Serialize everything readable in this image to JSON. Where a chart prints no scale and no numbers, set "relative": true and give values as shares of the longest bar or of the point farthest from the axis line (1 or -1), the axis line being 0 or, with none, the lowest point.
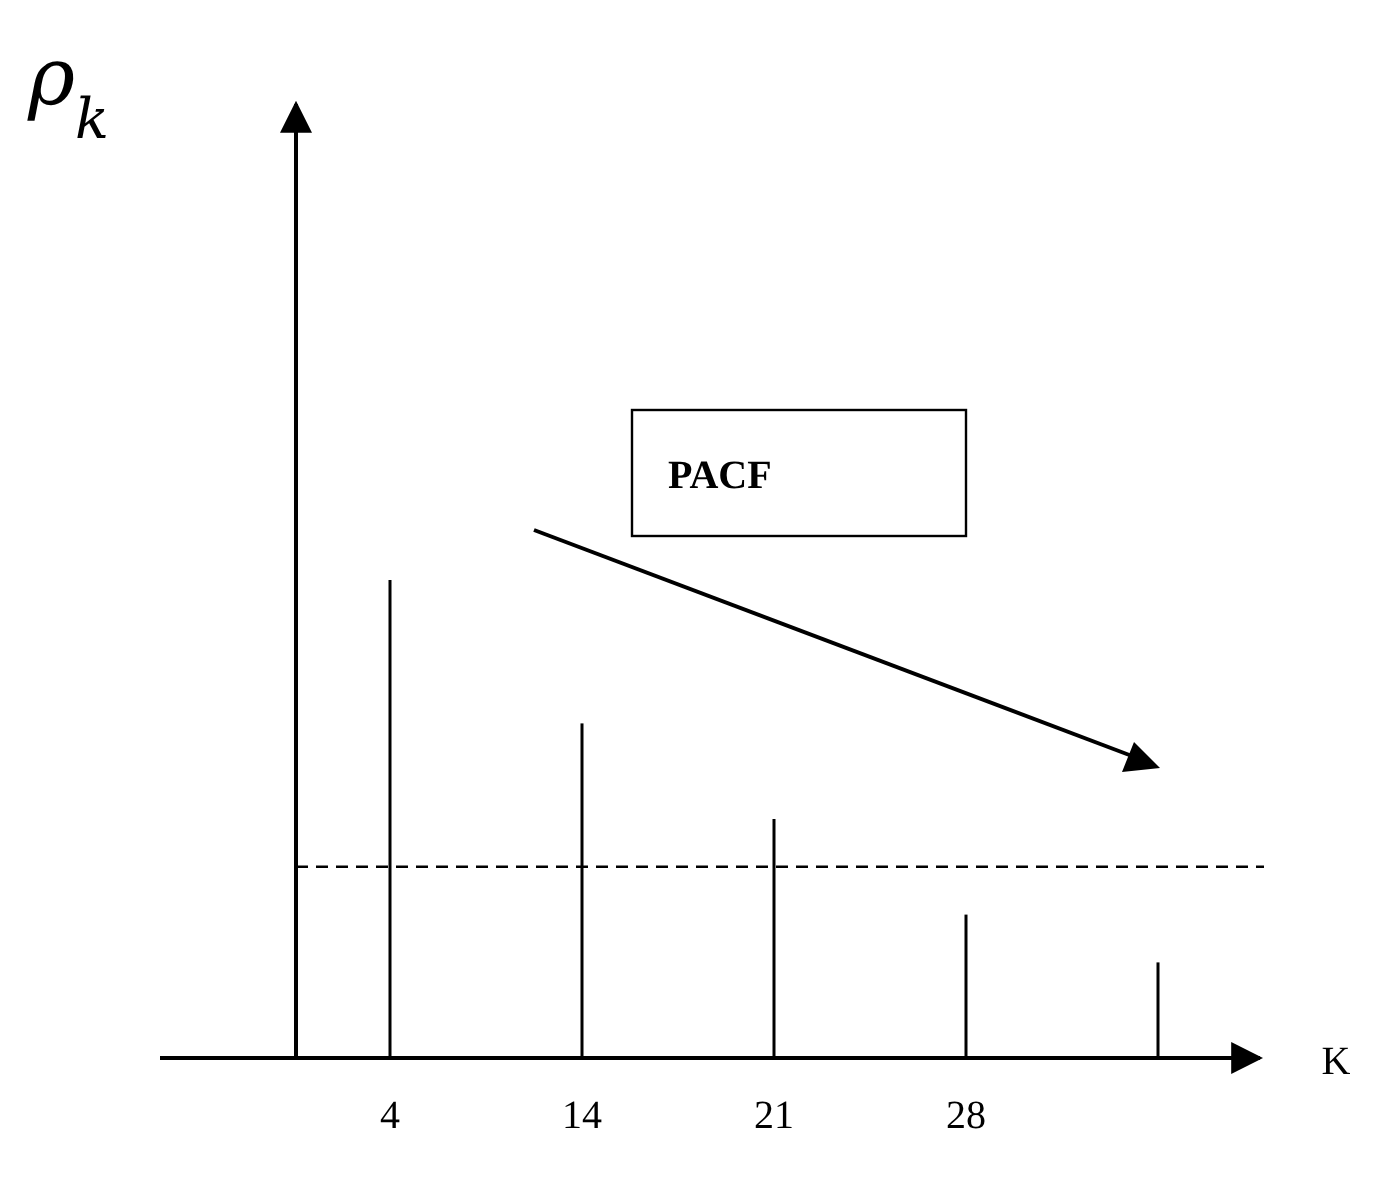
{
  "chart_data": {
    "type": "bar",
    "relative": true,
    "categories": [
      "4",
      "14",
      "21",
      "28",
      null
    ],
    "values": [
      1,
      0.7,
      0.5,
      0.3,
      0.2
    ],
    "color": "#000000",
    "xlabel": "K",
    "annotations": [
      "ρ$_{k}$",
      "PACF"
    ],
    "ref_lines": [
      {
        "axis": "y",
        "value": 0.4,
        "line_style": "dashed",
        "color": "#000000"
      }
    ]
  }
}
